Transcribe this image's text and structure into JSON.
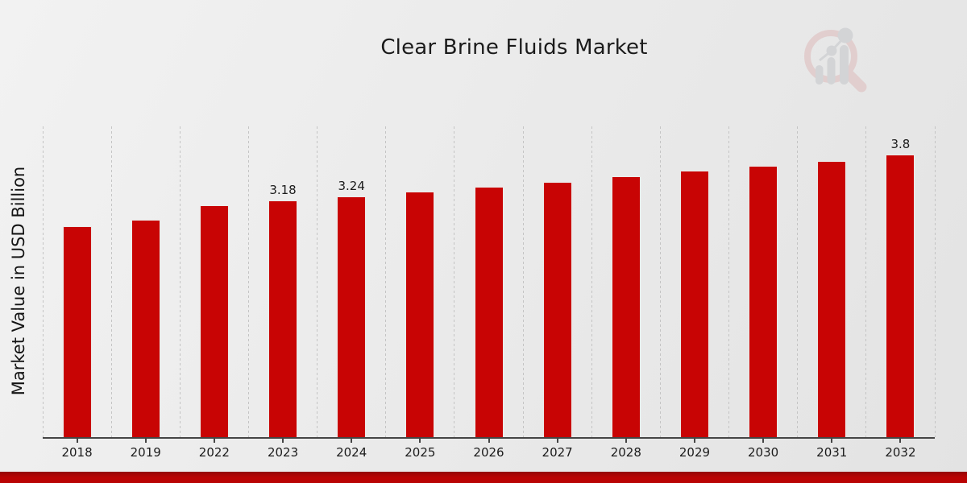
{
  "title": "Clear Brine Fluids Market",
  "ylabel": "Market Value in USD Billion",
  "colors": {
    "bar": "#c80404",
    "bar_edge": "#eceae8",
    "axis": "#454545",
    "gridline": "#c4c4c4",
    "text": "#1b1b1b",
    "footer_strip": "#bb0303",
    "footer_strip_edge": "#8f0707",
    "logo_ring": "#d9a8a8",
    "logo_bars": "#b4b7bd",
    "background": "#ebebeb"
  },
  "watermark": {
    "name": "magnifier-bar-chart-logo"
  },
  "chart_data": {
    "type": "bar",
    "title": "Clear Brine Fluids Market",
    "xlabel": "",
    "ylabel": "Market Value in USD Billion",
    "categories": [
      "2018",
      "2019",
      "2022",
      "2023",
      "2024",
      "2025",
      "2026",
      "2027",
      "2028",
      "2029",
      "2030",
      "2031",
      "2032"
    ],
    "values": [
      2.84,
      2.92,
      3.12,
      3.18,
      3.24,
      3.3,
      3.37,
      3.43,
      3.51,
      3.58,
      3.65,
      3.71,
      3.8
    ],
    "data_labels": [
      "",
      "",
      "",
      "3.18",
      "3.24",
      "",
      "",
      "",
      "",
      "",
      "",
      "",
      "3.8"
    ],
    "ylim": [
      0,
      4.2
    ],
    "grid": "vertical-dashed",
    "legend": "none",
    "bar_color": "#c80404"
  }
}
